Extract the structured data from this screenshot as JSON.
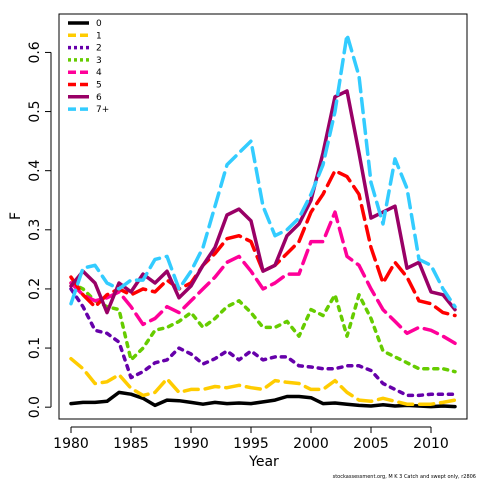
{
  "chart_data": {
    "type": "line",
    "xlabel": "Year",
    "ylabel": "F",
    "xlim": [
      1979,
      2013
    ],
    "ylim": [
      -0.02,
      0.665
    ],
    "x_ticks": [
      1980,
      1985,
      1990,
      1995,
      2000,
      2005,
      2010
    ],
    "y_ticks": [
      0.0,
      0.1,
      0.2,
      0.3,
      0.4,
      0.5,
      0.6
    ],
    "y_tick_labels": [
      "0.0",
      "0.1",
      "0.2",
      "0.3",
      "0.4",
      "0.5",
      "0.6"
    ],
    "grid": false,
    "legend_position": "top-left",
    "source_note": "stockassessment.org, M K 3 Catch and swept only, r2806",
    "x": [
      1980,
      1981,
      1982,
      1983,
      1984,
      1985,
      1986,
      1987,
      1988,
      1989,
      1990,
      1991,
      1992,
      1993,
      1994,
      1995,
      1996,
      1997,
      1998,
      1999,
      2000,
      2001,
      2002,
      2003,
      2004,
      2005,
      2006,
      2007,
      2008,
      2009,
      2010,
      2011,
      2012
    ],
    "series": [
      {
        "name": "0",
        "color": "#000000",
        "dash": "solid",
        "values": [
          0.006,
          0.008,
          0.008,
          0.01,
          0.025,
          0.022,
          0.015,
          0.003,
          0.012,
          0.011,
          0.008,
          0.005,
          0.008,
          0.006,
          0.007,
          0.006,
          0.009,
          0.012,
          0.018,
          0.018,
          0.016,
          0.006,
          0.007,
          0.005,
          0.003,
          0.002,
          0.004,
          0.002,
          0.003,
          0.002,
          0.001,
          0.002,
          0.001
        ]
      },
      {
        "name": "1",
        "color": "#ffcc00",
        "dash": "dashed",
        "values": [
          0.082,
          0.065,
          0.04,
          0.043,
          0.055,
          0.032,
          0.02,
          0.025,
          0.048,
          0.025,
          0.03,
          0.03,
          0.035,
          0.033,
          0.037,
          0.033,
          0.03,
          0.045,
          0.042,
          0.04,
          0.03,
          0.03,
          0.045,
          0.025,
          0.012,
          0.01,
          0.015,
          0.01,
          0.005,
          0.005,
          0.005,
          0.008,
          0.012
        ]
      },
      {
        "name": "2",
        "color": "#6600aa",
        "dash": "dotted",
        "values": [
          0.2,
          0.17,
          0.13,
          0.125,
          0.11,
          0.05,
          0.06,
          0.075,
          0.08,
          0.1,
          0.09,
          0.073,
          0.082,
          0.095,
          0.08,
          0.095,
          0.08,
          0.085,
          0.085,
          0.07,
          0.068,
          0.065,
          0.065,
          0.07,
          0.07,
          0.062,
          0.04,
          0.03,
          0.02,
          0.02,
          0.022,
          0.022,
          0.022
        ]
      },
      {
        "name": "3",
        "color": "#66cc00",
        "dash": "dotted",
        "values": [
          0.21,
          0.2,
          0.18,
          0.17,
          0.165,
          0.08,
          0.1,
          0.13,
          0.135,
          0.145,
          0.16,
          0.135,
          0.15,
          0.17,
          0.18,
          0.16,
          0.135,
          0.135,
          0.145,
          0.12,
          0.165,
          0.155,
          0.19,
          0.12,
          0.19,
          0.15,
          0.095,
          0.085,
          0.075,
          0.065,
          0.065,
          0.065,
          0.06
        ]
      },
      {
        "name": "4",
        "color": "#ff0099",
        "dash": "dashed",
        "values": [
          0.21,
          0.19,
          0.18,
          0.185,
          0.195,
          0.17,
          0.14,
          0.15,
          0.17,
          0.16,
          0.18,
          0.2,
          0.22,
          0.245,
          0.255,
          0.23,
          0.2,
          0.21,
          0.225,
          0.225,
          0.28,
          0.28,
          0.33,
          0.255,
          0.24,
          0.2,
          0.165,
          0.145,
          0.125,
          0.135,
          0.13,
          0.12,
          0.108
        ]
      },
      {
        "name": "5",
        "color": "#ff0000",
        "dash": "dashed",
        "values": [
          0.22,
          0.19,
          0.17,
          0.19,
          0.2,
          0.19,
          0.2,
          0.195,
          0.215,
          0.2,
          0.21,
          0.24,
          0.26,
          0.285,
          0.29,
          0.28,
          0.23,
          0.24,
          0.26,
          0.28,
          0.33,
          0.36,
          0.4,
          0.39,
          0.36,
          0.27,
          0.21,
          0.245,
          0.22,
          0.18,
          0.175,
          0.16,
          0.155
        ]
      },
      {
        "name": "6",
        "color": "#990066",
        "dash": "solid",
        "values": [
          0.205,
          0.23,
          0.21,
          0.16,
          0.21,
          0.195,
          0.225,
          0.21,
          0.23,
          0.185,
          0.205,
          0.24,
          0.27,
          0.325,
          0.335,
          0.315,
          0.23,
          0.24,
          0.29,
          0.31,
          0.35,
          0.43,
          0.525,
          0.535,
          0.43,
          0.32,
          0.33,
          0.34,
          0.235,
          0.245,
          0.195,
          0.19,
          0.165
        ]
      },
      {
        "name": "7+",
        "color": "#33ccff",
        "dash": "dashed",
        "values": [
          0.175,
          0.235,
          0.24,
          0.21,
          0.2,
          0.215,
          0.215,
          0.25,
          0.255,
          0.2,
          0.23,
          0.27,
          0.34,
          0.41,
          0.43,
          0.45,
          0.34,
          0.29,
          0.3,
          0.32,
          0.36,
          0.41,
          0.5,
          0.63,
          0.56,
          0.38,
          0.31,
          0.42,
          0.37,
          0.25,
          0.24,
          0.2,
          0.17
        ]
      }
    ]
  }
}
